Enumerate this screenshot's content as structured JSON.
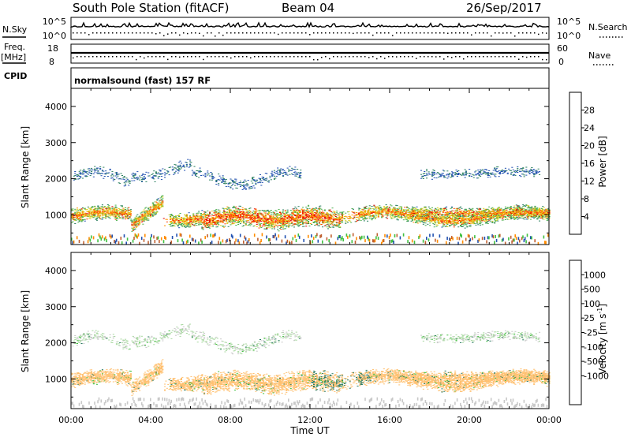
{
  "header": {
    "title": "South Pole Station (fitACF)",
    "beam": "Beam 04",
    "date": "26/Sep/2017",
    "nsky_label": "N.Sky",
    "nsky_ticks": [
      "10^5",
      "10^0"
    ],
    "nsearch_label": "N.Search",
    "nsearch_ticks": [
      "10^5",
      "10^0"
    ],
    "freq_label": "Freq.",
    "freq_unit": "[MHz]",
    "freq_ticks": [
      "18",
      "8"
    ],
    "nave_label": "Nave",
    "nave_ticks": [
      "60",
      "0"
    ],
    "cpid_label": "CPID",
    "cpid_value": "normalsound (fast) 157 RF"
  },
  "chart_data": {
    "type": "heatmap",
    "xlabel": "Time UT",
    "x_ticks": [
      "00:00",
      "04:00",
      "08:00",
      "12:00",
      "16:00",
      "20:00",
      "00:00"
    ],
    "xlim_hours": [
      0,
      24
    ],
    "ylabel": "Slant Range [km]",
    "y_ticks": [
      1000,
      2000,
      3000,
      4000
    ],
    "ylim_km": [
      180,
      4500
    ],
    "panels": [
      {
        "name": "power",
        "colorbar_label": "Power [dB]",
        "colorbar_ticks": [
          "28",
          "24",
          "20",
          "16",
          "12",
          "8",
          "4"
        ],
        "colors": [
          "#0000ff",
          "#2050b0",
          "#2c8060",
          "#50b050",
          "#d8d020",
          "#ff9000",
          "#ff4000",
          "#e00000"
        ],
        "value_range": [
          0,
          30
        ]
      },
      {
        "name": "velocity",
        "colorbar_label": "Velocity [m s^-1]",
        "colorbar_ticks": [
          "1000",
          "500",
          "100",
          "25",
          "-25",
          "-100",
          "-500",
          "-1000"
        ],
        "colors": [
          "#e00000",
          "#ff6000",
          "#ff9a10",
          "#ffc070",
          "#c8c8c8",
          "#a8d8a0",
          "#40c040",
          "#2a7a60",
          "#2050b0",
          "#0000ff"
        ],
        "value_range": [
          -1000,
          1000
        ]
      }
    ]
  }
}
